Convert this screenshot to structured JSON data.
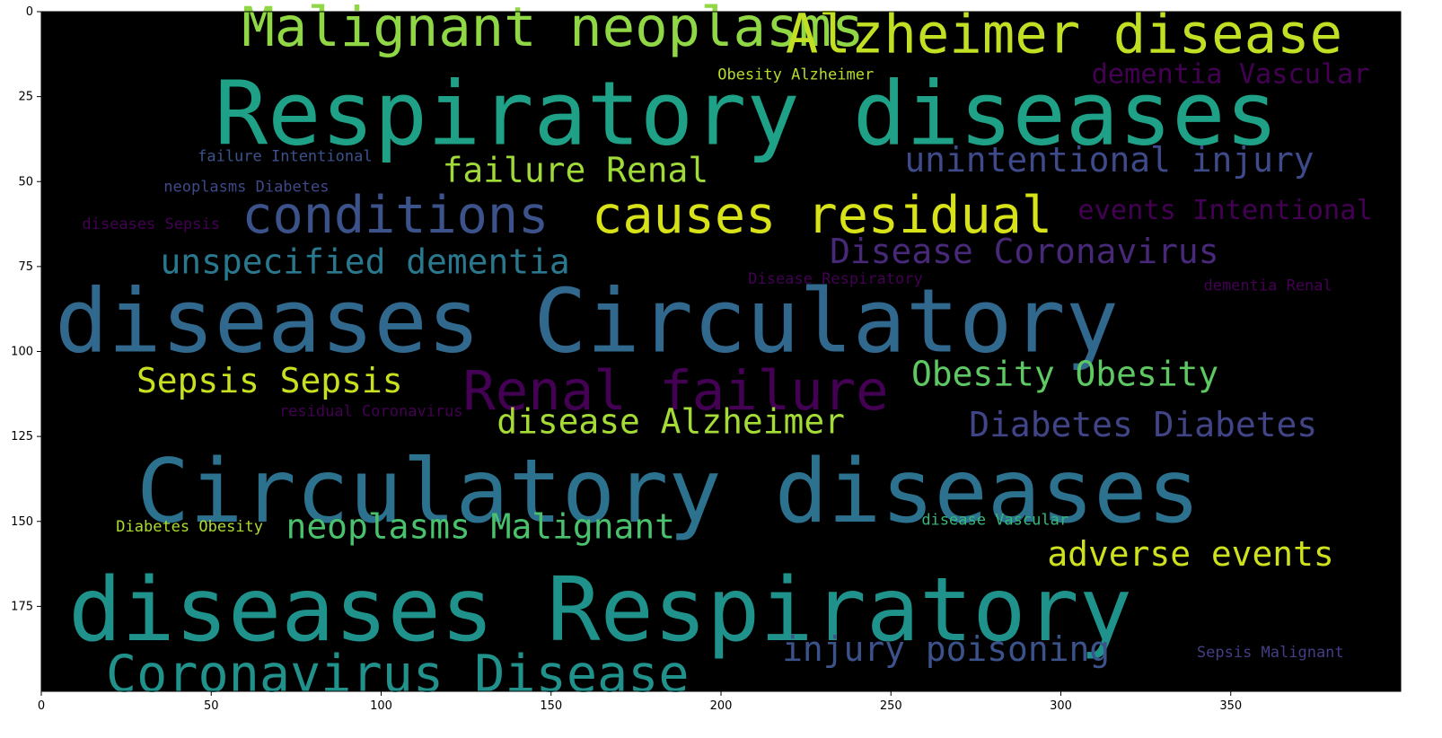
{
  "chart_data": {
    "type": "wordcloud",
    "xlim": [
      0,
      400
    ],
    "ylim": [
      200,
      0
    ],
    "x_ticks": [
      0,
      50,
      100,
      150,
      200,
      250,
      300,
      350
    ],
    "y_ticks": [
      0,
      25,
      50,
      75,
      100,
      125,
      150,
      175
    ],
    "background": "#000000",
    "words": [
      {
        "text": "Malignant neoplasms",
        "x": 59,
        "y": 10,
        "size": 16,
        "color": "#8fd744"
      },
      {
        "text": "Alzheimer disease",
        "x": 219,
        "y": 12,
        "size": 16,
        "color": "#c2df23"
      },
      {
        "text": "Obesity Alzheimer",
        "x": 199,
        "y": 20,
        "size": 4.5,
        "color": "#b5de2b"
      },
      {
        "text": "dementia Vascular",
        "x": 309,
        "y": 21,
        "size": 8,
        "color": "#440154"
      },
      {
        "text": "Respiratory diseases",
        "x": 51,
        "y": 39,
        "size": 26,
        "color": "#1fa187"
      },
      {
        "text": "failure Intentional",
        "x": 46,
        "y": 44,
        "size": 4.5,
        "color": "#3b528b"
      },
      {
        "text": "unintentional injury",
        "x": 254,
        "y": 47,
        "size": 10,
        "color": "#3e4a89"
      },
      {
        "text": "failure Renal",
        "x": 118,
        "y": 50,
        "size": 10,
        "color": "#a0da39"
      },
      {
        "text": "neoplasms Diabetes",
        "x": 36,
        "y": 53,
        "size": 4.5,
        "color": "#3e4989"
      },
      {
        "text": "conditions",
        "x": 59,
        "y": 65,
        "size": 15,
        "color": "#3b528b"
      },
      {
        "text": "causes residual",
        "x": 162,
        "y": 65,
        "size": 15,
        "color": "#d8e219"
      },
      {
        "text": "events Intentional",
        "x": 305,
        "y": 61,
        "size": 8,
        "color": "#440154"
      },
      {
        "text": "diseases Sepsis",
        "x": 12,
        "y": 64,
        "size": 4.5,
        "color": "#440154"
      },
      {
        "text": "unspecified dementia",
        "x": 35,
        "y": 77,
        "size": 10,
        "color": "#2a788e"
      },
      {
        "text": "Disease Coronavirus",
        "x": 232,
        "y": 74,
        "size": 10,
        "color": "#482878"
      },
      {
        "text": "Disease Respiratory",
        "x": 208,
        "y": 80,
        "size": 4.5,
        "color": "#440154"
      },
      {
        "text": "dementia Renal",
        "x": 342,
        "y": 82,
        "size": 4.5,
        "color": "#440154"
      },
      {
        "text": "diseases Circulatory",
        "x": 4,
        "y": 100,
        "size": 26,
        "color": "#31688e"
      },
      {
        "text": "Sepsis Sepsis",
        "x": 28,
        "y": 112,
        "size": 10,
        "color": "#c8e020"
      },
      {
        "text": "Renal failure",
        "x": 124,
        "y": 117,
        "size": 16,
        "color": "#440154"
      },
      {
        "text": "Obesity Obesity",
        "x": 256,
        "y": 110,
        "size": 10,
        "color": "#5ec962"
      },
      {
        "text": "residual Coronavirus",
        "x": 70,
        "y": 119,
        "size": 4.5,
        "color": "#440154"
      },
      {
        "text": "disease Alzheimer",
        "x": 134,
        "y": 124,
        "size": 10,
        "color": "#a5db36"
      },
      {
        "text": "Diabetes Diabetes",
        "x": 273,
        "y": 125,
        "size": 10,
        "color": "#414487"
      },
      {
        "text": "Circulatory diseases",
        "x": 28,
        "y": 150,
        "size": 26,
        "color": "#2c728e"
      },
      {
        "text": "Diabetes Obesity",
        "x": 22,
        "y": 153,
        "size": 4.5,
        "color": "#addc30"
      },
      {
        "text": "disease Vascular",
        "x": 259,
        "y": 151,
        "size": 4.5,
        "color": "#35b779"
      },
      {
        "text": "neoplasms Malignant",
        "x": 72,
        "y": 155,
        "size": 10,
        "color": "#4ac16d"
      },
      {
        "text": "adverse events",
        "x": 296,
        "y": 163,
        "size": 10,
        "color": "#cde11d"
      },
      {
        "text": "diseases Respiratory",
        "x": 8,
        "y": 185,
        "size": 26,
        "color": "#20928c"
      },
      {
        "text": "Sepsis Malignant",
        "x": 340,
        "y": 190,
        "size": 4.5,
        "color": "#433e85"
      },
      {
        "text": "injury poisoning",
        "x": 218,
        "y": 191,
        "size": 10,
        "color": "#3b528b"
      },
      {
        "text": "Coronavirus Disease",
        "x": 19,
        "y": 200,
        "size": 15,
        "color": "#21918c"
      }
    ]
  }
}
